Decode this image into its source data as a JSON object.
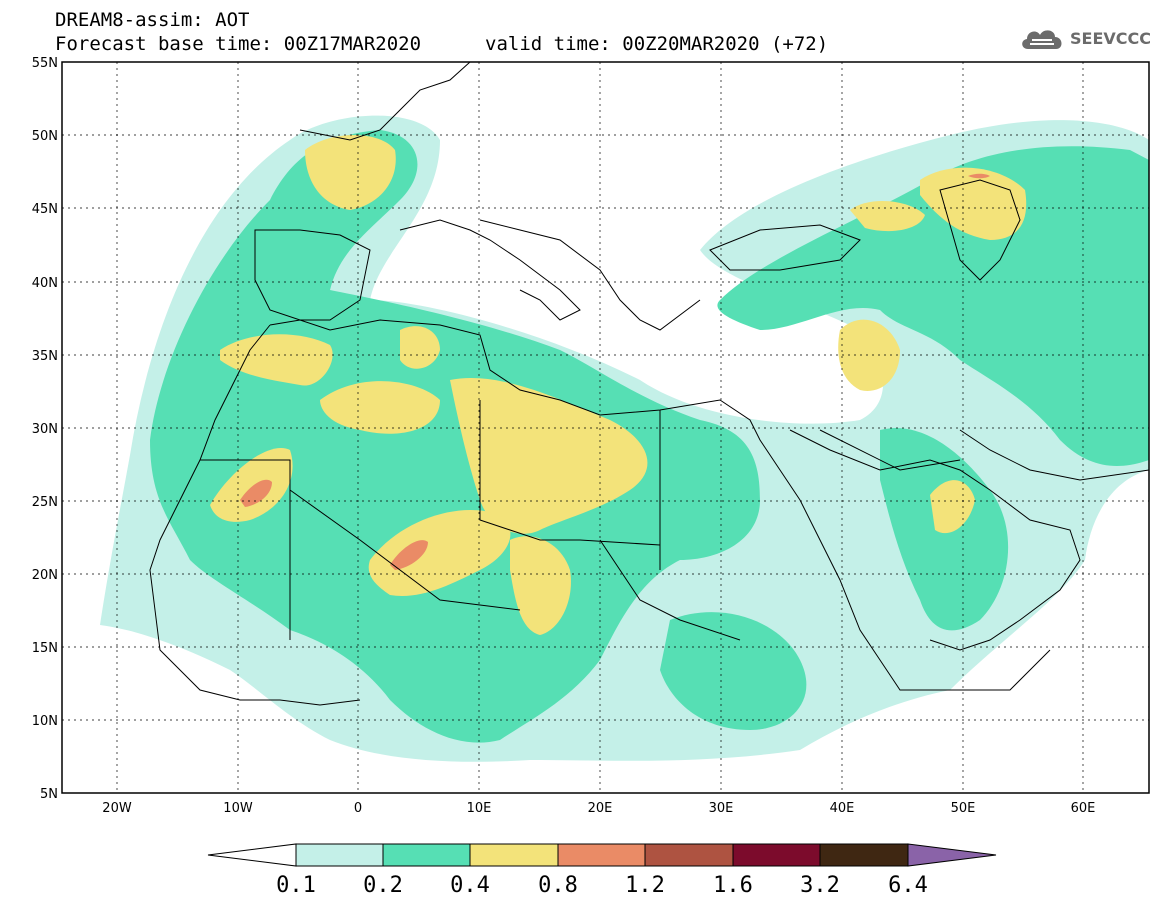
{
  "header": {
    "title_line_1": "DREAM8-assim: AOT",
    "title_line_2": "Forecast base time: 00Z17MAR2020",
    "valid_time": "valid time: 00Z20MAR2020 (+72)",
    "logo_text": "SEEVCCC",
    "logo_icon": "cloud-icon"
  },
  "map": {
    "region": "North Africa, Europe and Middle East",
    "lon_range": [
      -25,
      65
    ],
    "lat_range": [
      5,
      55
    ],
    "lat_ticks": [
      {
        "value": 55,
        "label": "55N"
      },
      {
        "value": 50,
        "label": "50N"
      },
      {
        "value": 45,
        "label": "45N"
      },
      {
        "value": 40,
        "label": "40N"
      },
      {
        "value": 35,
        "label": "35N"
      },
      {
        "value": 30,
        "label": "30N"
      },
      {
        "value": 25,
        "label": "25N"
      },
      {
        "value": 20,
        "label": "20N"
      },
      {
        "value": 15,
        "label": "15N"
      },
      {
        "value": 10,
        "label": "10N"
      },
      {
        "value": 5,
        "label": "5N"
      }
    ],
    "lon_ticks": [
      {
        "value": -20,
        "label": "20W"
      },
      {
        "value": -10,
        "label": "10W"
      },
      {
        "value": 0,
        "label": "0"
      },
      {
        "value": 10,
        "label": "10E"
      },
      {
        "value": 20,
        "label": "20E"
      },
      {
        "value": 30,
        "label": "30E"
      },
      {
        "value": 40,
        "label": "40E"
      },
      {
        "value": 50,
        "label": "50E"
      },
      {
        "value": 60,
        "label": "60E"
      }
    ]
  },
  "colorbar": {
    "under_color": "#ffffff",
    "over_color": "#8a63a8",
    "bins": [
      {
        "color": "#c4f0e8"
      },
      {
        "color": "#56dfb4"
      },
      {
        "color": "#f3e37a"
      },
      {
        "color": "#ea8b66"
      },
      {
        "color": "#ae5341"
      },
      {
        "color": "#7c0b2c"
      },
      {
        "color": "#3f2712"
      }
    ],
    "labels": [
      "0.1",
      "0.2",
      "0.4",
      "0.8",
      "1.2",
      "1.6",
      "3.2",
      "6.4"
    ]
  }
}
